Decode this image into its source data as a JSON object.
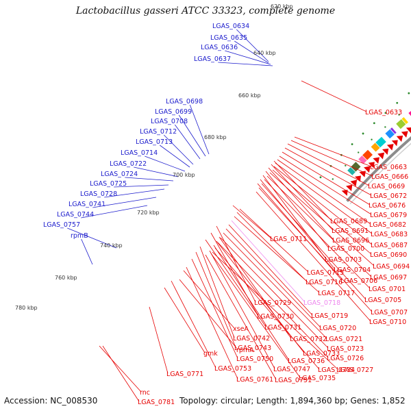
{
  "title": "Lactobacillus gasseri ATCC 33323, complete genome",
  "footer": {
    "accession": "Accession: NC_008530",
    "summary": "Topology: circular; Length: 1,894,360 bp; Genes: 1,852"
  },
  "colors": {
    "backbone": "#8c8c8c",
    "forward_cds": "#e60000",
    "reverse_label": "#1a1acc",
    "highlight_label": "#ee88ee",
    "gc_tick": "#2e8b2e"
  },
  "kbp_ticks": [
    "620 kbp",
    "640 kbp",
    "660 kbp",
    "680 kbp",
    "700 kbp",
    "720 kbp",
    "740 kbp",
    "760 kbp",
    "780 kbp"
  ],
  "blue_labels": [
    "LGAS_0634",
    "LGAS_0635",
    "LGAS_0636",
    "LGAS_0637",
    "LGAS_0698",
    "LGAS_0699",
    "LGAS_0708",
    "LGAS_0712",
    "LGAS_0713",
    "LGAS_0714",
    "LGAS_0722",
    "LGAS_0724",
    "LGAS_0725",
    "LGAS_0728",
    "LGAS_0741",
    "LGAS_0744",
    "LGAS_0757",
    "rpmB"
  ],
  "red_labels": [
    "LGAS_0633",
    "LGAS_0663",
    "LGAS_0666",
    "LGAS_0669",
    "LGAS_0672",
    "LGAS_0676",
    "LGAS_0679",
    "LGAS_0689",
    "LGAS_0682",
    "LGAS_0691",
    "LGAS_0683",
    "LGAS_0696",
    "LGAS_0687",
    "LGAS_0711",
    "LGAS_0700",
    "LGAS_0690",
    "LGAS_0703",
    "LGAS_0694",
    "LGAS_0704",
    "LGAS_0697",
    "LGAS_0715",
    "LGAS_0706",
    "LGAS_0716",
    "LGAS_0701",
    "LGAS_0717",
    "LGAS_0705",
    "LGAS_0729",
    "LGAS_0718",
    "LGAS_0707",
    "LGAS_0719",
    "LGAS_0730",
    "LGAS_0710",
    "LGAS_0731",
    "LGAS_0720",
    "xseA",
    "LGAS_0742",
    "LGAS_0721",
    "LGAS_0743",
    "LGAS_0732",
    "rpmA",
    "gmk",
    "LGAS_0733",
    "LGAS_0723",
    "LGAS_0750",
    "LGAS_0736",
    "LGAS_0726",
    "LGAS_0753",
    "LGAS_0747",
    "LGAS_0734",
    "LGAS_0727",
    "LGAS_0771",
    "LGAS_0761",
    "LGAS_0751",
    "LGAS_0735",
    "rnc",
    "LGAS_0781"
  ]
}
